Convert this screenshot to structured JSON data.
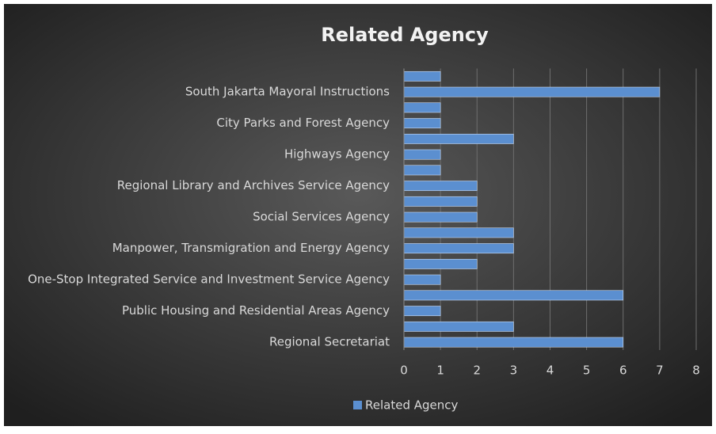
{
  "chart_data": {
    "type": "bar",
    "orientation": "horizontal",
    "title": "Related Agency",
    "categories": [
      "Regional Secretariat",
      null,
      "Public Housing and Residential Areas Agency",
      null,
      "One-Stop Integrated Service and Investment Service Agency",
      null,
      "Manpower, Transmigration and Energy Agency",
      null,
      "Social Services Agency",
      null,
      "Regional Library and Archives Service Agency",
      null,
      "Highways Agency",
      null,
      "City Parks and Forest Agency",
      null,
      "South Jakarta Mayoral Instructions",
      null
    ],
    "series": [
      {
        "name": "Related Agency",
        "color": "#5b8fd0",
        "values": [
          6,
          3,
          1,
          6,
          1,
          2,
          3,
          3,
          2,
          2,
          2,
          1,
          1,
          3,
          1,
          1,
          7,
          1
        ]
      }
    ],
    "xlim": [
      0,
      8
    ],
    "xticks": [
      0,
      1,
      2,
      3,
      4,
      5,
      6,
      7,
      8
    ],
    "grid": true,
    "legend": "bottom"
  }
}
